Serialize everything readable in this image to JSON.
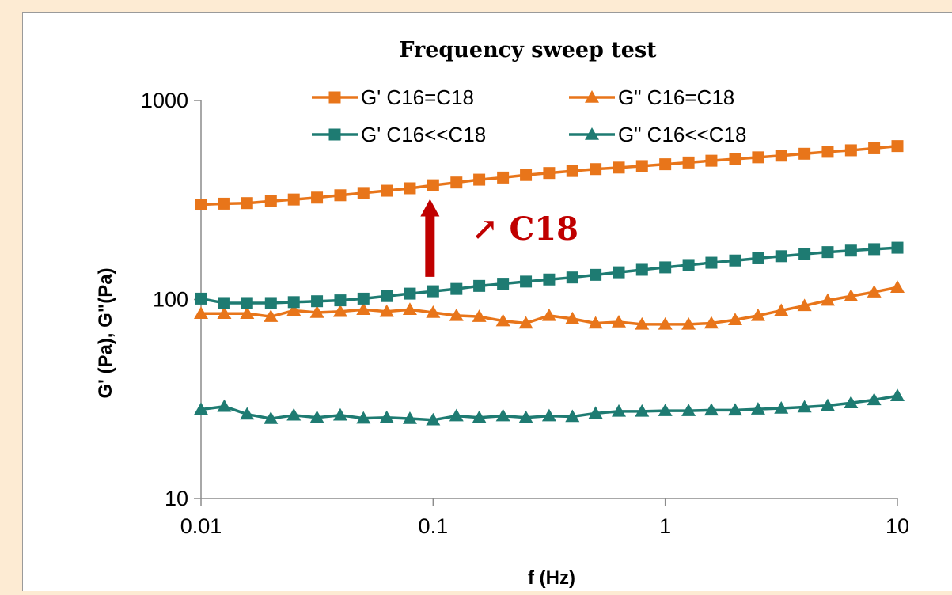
{
  "chart_data": {
    "type": "line",
    "title": "Frequency sweep test",
    "xlabel": "f (Hz)",
    "ylabel": "G' (Pa), G\"(Pa)",
    "x_scale": "log",
    "y_scale": "log",
    "xlim": [
      0.01,
      10
    ],
    "ylim": [
      10,
      1000
    ],
    "x_ticks": [
      "0.01",
      "0.1",
      "1",
      "10"
    ],
    "y_ticks": [
      "10",
      "100",
      "1000"
    ],
    "grid": false,
    "legend_position": "top",
    "x": [
      0.01,
      0.0126,
      0.0158,
      0.02,
      0.0251,
      0.0316,
      0.0398,
      0.0501,
      0.0631,
      0.0794,
      0.1,
      0.126,
      0.158,
      0.2,
      0.251,
      0.316,
      0.398,
      0.501,
      0.631,
      0.794,
      1,
      1.26,
      1.58,
      2,
      2.51,
      3.16,
      3.98,
      5.01,
      6.31,
      7.94,
      10
    ],
    "series": [
      {
        "name": "G' C16=C18",
        "marker": "square",
        "color": "#e8751a",
        "values": [
          300,
          303,
          305,
          312,
          318,
          325,
          334,
          343,
          352,
          362,
          375,
          387,
          400,
          410,
          422,
          432,
          442,
          452,
          460,
          468,
          478,
          488,
          498,
          508,
          518,
          528,
          540,
          552,
          562,
          575,
          590
        ]
      },
      {
        "name": "G\" C16=C18",
        "marker": "triangle",
        "color": "#e8751a",
        "values": [
          85,
          85,
          85,
          82,
          88,
          86,
          87,
          89,
          87,
          89,
          86,
          83,
          82,
          78,
          76,
          83,
          80,
          76,
          77,
          75,
          75,
          75,
          76,
          79,
          83,
          88,
          93,
          99,
          104,
          109,
          115
        ]
      },
      {
        "name": "G' C16<<C18",
        "marker": "square",
        "color": "#1e7b72",
        "values": [
          101,
          96,
          96,
          96,
          97,
          98,
          99,
          101,
          104,
          107,
          110,
          113,
          117,
          120,
          123,
          126,
          129,
          133,
          137,
          141,
          145,
          149,
          153,
          157,
          161,
          165,
          169,
          173,
          176,
          179,
          182
        ]
      },
      {
        "name": "G\" C16<<C18",
        "marker": "triangle",
        "color": "#1e7b72",
        "values": [
          28,
          29,
          26.5,
          25.2,
          26.2,
          25.5,
          26.2,
          25.3,
          25.5,
          25.2,
          24.8,
          26,
          25.5,
          26,
          25.5,
          26,
          25.8,
          26.8,
          27.4,
          27.4,
          27.6,
          27.6,
          27.8,
          27.8,
          28.1,
          28.4,
          28.8,
          29.3,
          30.2,
          31.3,
          32.8
        ]
      }
    ],
    "annotation": {
      "text": "↗ C18",
      "color": "#c00000",
      "arrow_x": 0.1,
      "arrow_from_y": 130,
      "arrow_to_y": 320
    }
  }
}
